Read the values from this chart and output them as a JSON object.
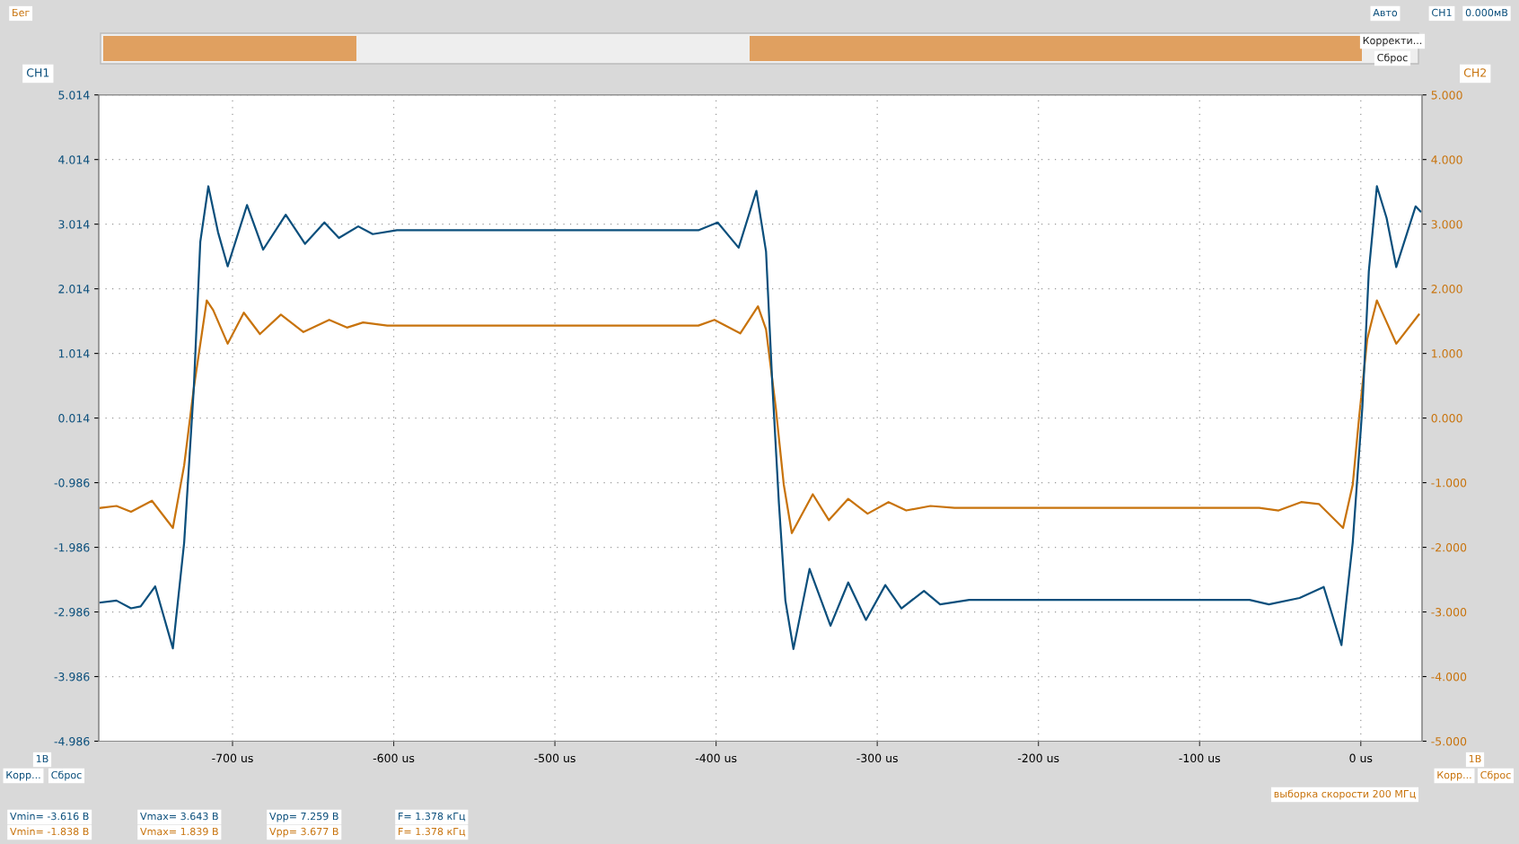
{
  "chart_data": {
    "type": "line",
    "ylabel": "CH1",
    "y2label": "CH2",
    "grid": true,
    "legend": false,
    "marker": "none",
    "line_style": "solid",
    "xlim": [
      -783,
      38
    ],
    "xticks": [
      {
        "value": -700,
        "label": "-700 us"
      },
      {
        "value": -600,
        "label": "-600 us"
      },
      {
        "value": -500,
        "label": "-500 us"
      },
      {
        "value": -400,
        "label": "-400 us"
      },
      {
        "value": -300,
        "label": "-300 us"
      },
      {
        "value": -200,
        "label": "-200 us"
      },
      {
        "value": -100,
        "label": "-100 us"
      },
      {
        "value": 0,
        "label": "0 us"
      }
    ],
    "ylim": [
      -4.986,
      5.014
    ],
    "yticks": [
      5.014,
      4.014,
      3.014,
      2.014,
      1.014,
      0.014,
      -0.986,
      -1.986,
      -2.986,
      -3.986,
      -4.986
    ],
    "y2lim": [
      -5,
      5
    ],
    "y2ticks": [
      {
        "value": 5,
        "label": "5.000"
      },
      {
        "value": 4,
        "label": "4.000"
      },
      {
        "value": 3,
        "label": "3.000"
      },
      {
        "value": 2,
        "label": "2.000"
      },
      {
        "value": 1,
        "label": "1.000"
      },
      {
        "value": 0,
        "label": "0.000"
      },
      {
        "value": -1,
        "label": "-1.000"
      },
      {
        "value": -2,
        "label": "-2.000"
      },
      {
        "value": -3,
        "label": "-3.000"
      },
      {
        "value": -4,
        "label": "-4.000"
      },
      {
        "value": -5,
        "label": "-5.000"
      }
    ],
    "series": [
      {
        "color": "#0b4f7c",
        "x": [
          -782,
          -772,
          -763,
          -757,
          -748,
          -737,
          -730,
          -724,
          -720,
          -715,
          -709,
          -703,
          -691,
          -681,
          -667,
          -655,
          -643,
          -634,
          -622,
          -613,
          -598,
          -411,
          -399,
          -386,
          -375,
          -369,
          -365,
          -361,
          -357,
          -352,
          -342,
          -329,
          -318,
          -307,
          -295,
          -285,
          -271,
          -261,
          -243,
          -69,
          -57,
          -38,
          -23,
          -12,
          -5,
          1,
          5,
          10,
          16,
          22,
          34,
          37
        ],
        "values": [
          -2.84,
          -2.81,
          -2.93,
          -2.9,
          -2.59,
          -3.55,
          -1.91,
          0.49,
          2.74,
          3.6,
          2.89,
          2.36,
          3.31,
          2.62,
          3.16,
          2.71,
          3.04,
          2.8,
          2.98,
          2.86,
          2.92,
          2.92,
          3.04,
          2.65,
          3.53,
          2.59,
          0.49,
          -1.31,
          -2.81,
          -3.56,
          -2.32,
          -3.2,
          -2.53,
          -3.11,
          -2.57,
          -2.93,
          -2.66,
          -2.87,
          -2.8,
          -2.8,
          -2.87,
          -2.77,
          -2.6,
          -3.5,
          -1.91,
          0.19,
          2.29,
          3.6,
          3.11,
          2.35,
          3.29,
          3.21
        ]
      },
      {
        "color": "#c8730c",
        "axis": "y2",
        "x": [
          -782,
          -772,
          -763,
          -750,
          -737,
          -730,
          -724,
          -716,
          -712,
          -703,
          -693,
          -683,
          -670,
          -656,
          -640,
          -629,
          -619,
          -604,
          -411,
          -401,
          -385,
          -374,
          -369,
          -363,
          -358,
          -353,
          -340,
          -330,
          -318,
          -306,
          -293,
          -282,
          -267,
          -252,
          -63,
          -51,
          -37,
          -26,
          -11,
          -5,
          -1,
          4,
          10,
          17,
          22,
          36
        ],
        "values": [
          -1.39,
          -1.36,
          -1.45,
          -1.28,
          -1.7,
          -0.73,
          0.47,
          1.82,
          1.67,
          1.15,
          1.63,
          1.3,
          1.6,
          1.33,
          1.52,
          1.4,
          1.48,
          1.43,
          1.43,
          1.52,
          1.31,
          1.73,
          1.37,
          0.17,
          -1.03,
          -1.78,
          -1.18,
          -1.58,
          -1.25,
          -1.48,
          -1.3,
          -1.43,
          -1.36,
          -1.39,
          -1.39,
          -1.43,
          -1.3,
          -1.33,
          -1.7,
          -1.03,
          0.02,
          1.22,
          1.82,
          1.43,
          1.15,
          1.6
        ]
      }
    ],
    "annotations": [
      "Бег",
      "Авто",
      "CH1",
      "0.000мВ",
      "Корректи...",
      "Сброс",
      "1В",
      "Корр...",
      "Сброс",
      "1В",
      "Корр...",
      "Сброс",
      "выборка скорости 200 МГц",
      "Vmin= -3.616 В",
      "Vmax= 3.643 В",
      "Vpp= 7.259 В",
      "F= 1.378 кГц",
      "Vmin= -1.838 В",
      "Vmax= 1.839 В",
      "Vpp= 3.677 В",
      "F= 1.378 кГц"
    ]
  }
}
